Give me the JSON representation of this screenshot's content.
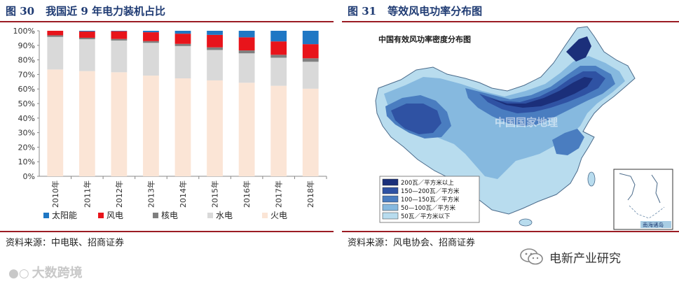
{
  "left": {
    "fig_number": "图 30",
    "fig_title": "我国近 9 年电力装机占比",
    "source": "资料来源：中电联、招商证券"
  },
  "right": {
    "fig_number": "图 31",
    "fig_title": "等效风电功率分布图",
    "map_title": "中国有效风功率密度分布图",
    "map_watermark": "中国国家地理",
    "inset_label": "南海诸岛",
    "legend": [
      {
        "label": "200瓦／平方米以上",
        "color": "#1b2f7a"
      },
      {
        "label": "150—200瓦／平方米",
        "color": "#2f52a3"
      },
      {
        "label": "100—150瓦／平方米",
        "color": "#4a7dc0"
      },
      {
        "label": "50—100瓦／平方米",
        "color": "#86b9df"
      },
      {
        "label": "50瓦／平方米以下",
        "color": "#b8dcee"
      }
    ],
    "source": "资料来源：风电协会、招商证券"
  },
  "watermarks": {
    "left_logo": "大数跨境",
    "right_account": "电新产业研究"
  },
  "chart_data": {
    "type": "bar",
    "stacked": true,
    "title": "我国近 9 年电力装机占比",
    "categories": [
      "2010年",
      "2011年",
      "2012年",
      "2013年",
      "2014年",
      "2015年",
      "2016年",
      "2017年",
      "2018年"
    ],
    "yticks": [
      "0%",
      "10%",
      "20%",
      "30%",
      "40%",
      "50%",
      "60%",
      "70%",
      "80%",
      "90%",
      "100%"
    ],
    "ylim": [
      0,
      100
    ],
    "legend_position": "bottom",
    "series": [
      {
        "name": "火电",
        "color": "#fbe5d6",
        "values": [
          73.4,
          72.3,
          71.5,
          69.2,
          67.3,
          65.9,
          64.3,
          62.2,
          60.2
        ]
      },
      {
        "name": "水电",
        "color": "#d9d9d9",
        "values": [
          22.4,
          21.9,
          21.8,
          22.5,
          22.2,
          20.9,
          20.2,
          19.3,
          18.5
        ]
      },
      {
        "name": "核电",
        "color": "#7f7f7f",
        "values": [
          1.1,
          1.0,
          1.1,
          1.2,
          1.5,
          1.8,
          2.0,
          2.0,
          2.4
        ]
      },
      {
        "name": "风电",
        "color": "#e8141b",
        "values": [
          3.1,
          4.3,
          5.3,
          6.1,
          7.0,
          8.6,
          9.0,
          9.2,
          9.7
        ]
      },
      {
        "name": "太阳能",
        "color": "#1f77c4",
        "values": [
          0.0,
          0.5,
          0.3,
          1.0,
          2.0,
          2.8,
          4.5,
          7.3,
          9.2
        ]
      }
    ]
  }
}
